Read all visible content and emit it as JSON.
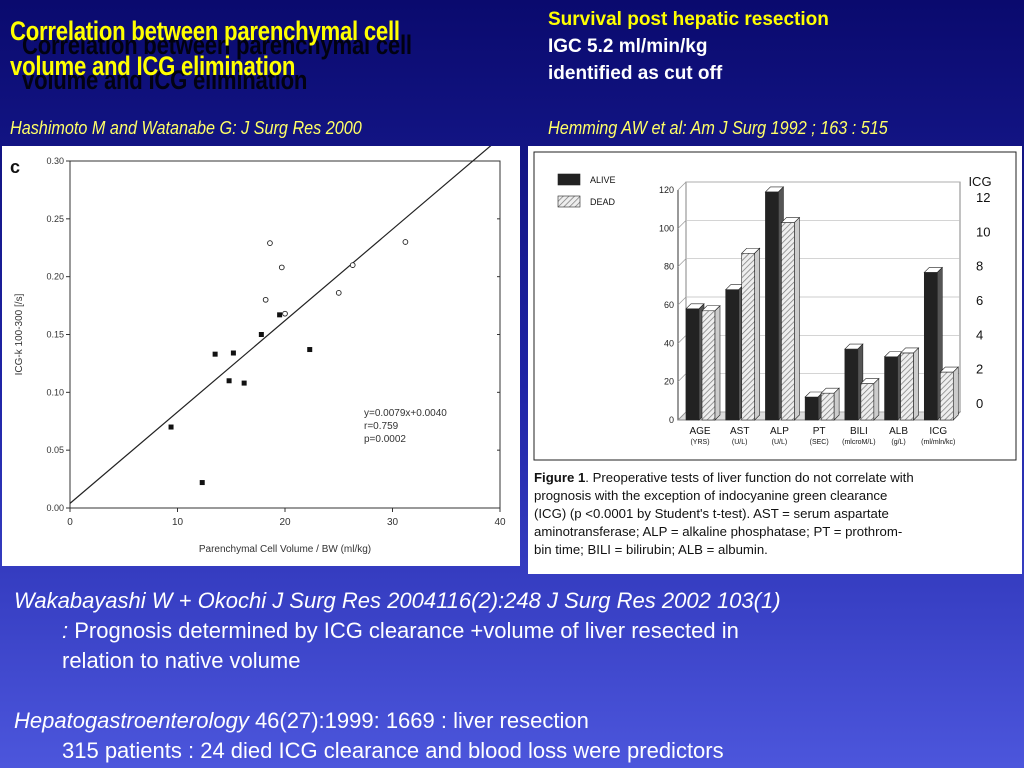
{
  "slide": {
    "title_line1": "Correlation between parenchymal cell",
    "title_line2": "volume and ICG elimination",
    "ref_left": "Hashimoto M and Watanabe G: J Surg Res 2000",
    "right_line1": "Survival post  hepatic resection",
    "right_line2": "IGC 5.2 ml/min/kg",
    "right_line3": "identified as cut off",
    "ref_right": "Hemming AW et al:  Am J Surg 1992 ; 163 : 515",
    "bottom": {
      "p1_ref": "Wakabayashi W + Okochi  J Surg Res 2004116(2):248 J Surg Res 2002 103(1)",
      "p1_colon": ":",
      "p1_text_a": " Prognosis determined by ICG clearance +volume of liver resected in",
      "p1_text_b": "relation to native volume",
      "p2_ref": "Hepatogastroenterology",
      "p2_rest": " 46(27):1999: 1669 : liver resection",
      "p2_line2": "315 patients : 24 died  ICG clearance and blood loss were predictors"
    }
  },
  "chart_data": [
    {
      "type": "scatter",
      "panel_label": "c",
      "xlabel": "Parenchymal Cell Volume / BW (ml/kg)",
      "ylabel": "ICG-k 100-300 [/s]",
      "xlim": [
        0,
        40
      ],
      "ylim": [
        0,
        0.3
      ],
      "xticks": [
        "0",
        "10",
        "20",
        "30",
        "40"
      ],
      "yticks": [
        "0.00",
        "0.05",
        "0.10",
        "0.15",
        "0.20",
        "0.25",
        "0.30"
      ],
      "annotation": [
        "y=0.0079x+0.0040",
        "r=0.759",
        "p=0.0002"
      ],
      "regression": {
        "slope": 0.0079,
        "intercept": 0.004,
        "x_from": 0,
        "x_to": 40
      },
      "series": [
        {
          "marker": "filled-square",
          "points": [
            [
              9.4,
              0.07
            ],
            [
              12.3,
              0.022
            ],
            [
              13.5,
              0.133
            ],
            [
              14.8,
              0.11
            ],
            [
              15.2,
              0.134
            ],
            [
              16.2,
              0.108
            ],
            [
              17.8,
              0.15
            ],
            [
              19.5,
              0.167
            ],
            [
              22.3,
              0.137
            ]
          ]
        },
        {
          "marker": "open-circle",
          "points": [
            [
              18.2,
              0.18
            ],
            [
              18.6,
              0.229
            ],
            [
              19.7,
              0.208
            ],
            [
              20.0,
              0.168
            ],
            [
              25.0,
              0.186
            ],
            [
              26.3,
              0.21
            ],
            [
              31.2,
              0.23
            ]
          ]
        }
      ]
    },
    {
      "type": "bar",
      "categories": [
        "AGE",
        "AST",
        "ALP",
        "PT",
        "BILI",
        "ALB",
        "ICG"
      ],
      "category_units": [
        "(YRS)",
        "(U/L)",
        "(U/L)",
        "(SEC)",
        "(mlcroM/L)",
        "(g/L)",
        "(ml/mln/kc)"
      ],
      "series": [
        {
          "name": "ALIVE",
          "values": [
            58,
            68,
            119,
            12,
            37,
            33,
            7.7
          ]
        },
        {
          "name": "DEAD",
          "values": [
            57,
            87,
            103,
            14,
            19,
            35,
            2.5
          ]
        }
      ],
      "ylim": [
        0,
        120
      ],
      "yticks": [
        "0",
        "20",
        "40",
        "60",
        "80",
        "100",
        "120"
      ],
      "secondary_axis_label": "ICG",
      "secondary_yticks": [
        "0",
        "2",
        "4",
        "6",
        "8",
        "10",
        "12"
      ],
      "secondary_ylim": [
        0,
        12
      ],
      "caption_label": "Figure 1",
      "caption_lines": [
        ". Preoperative tests of liver function do not correlate with",
        "prognosis with the exception of indocyanine green clearance",
        "(ICG) (p <0.0001 by Student's t-test). AST = serum aspartate",
        "aminotransferase; ALP = alkaline phosphatase; PT = prothrom-",
        "bin time; BILI = bilirubin; ALB = albumin."
      ]
    }
  ]
}
